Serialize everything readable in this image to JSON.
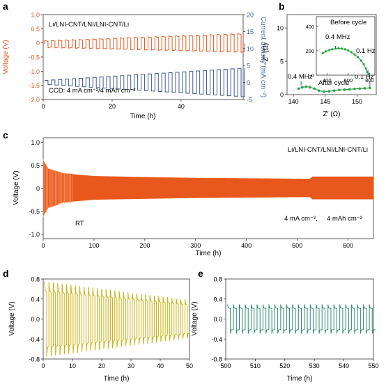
{
  "colors": {
    "orange": "#e8581c",
    "navy": "#3d5a92",
    "green": "#2aa244",
    "yellow": "#c9b20c",
    "teal": "#2e8b6a",
    "axis": "#333333",
    "blue_label": "#4a6fa5"
  },
  "chart_data": [
    {
      "panel": "a",
      "type": "line",
      "annotations": [
        "Li/LNI-CNT/LNI/LNI-CNT/Li",
        "CCD: 4 mA cm⁻²/4 mAh cm⁻²"
      ],
      "xlabel": "Time (h)",
      "ylabel": "Voltage (V)",
      "y2label": "Current density (mA cm⁻²)",
      "xlim": [
        0,
        58
      ],
      "ylim": [
        -2.0,
        1.0
      ],
      "y2lim": [
        -5,
        20
      ],
      "xticks": [
        0,
        20,
        40
      ],
      "yticks": [
        "-2.0",
        "-1.5",
        "-1.0",
        "-0.5",
        "0",
        "0.5",
        "1.0"
      ],
      "y2ticks": [
        "-5",
        "0",
        "5",
        "10",
        "15",
        "20"
      ],
      "series": [
        {
          "axis": "left",
          "start": [
            0,
            -0.05
          ],
          "end": [
            58,
            0.35
          ],
          "note": "square-wave voltage, amplitude growing with time"
        },
        {
          "axis": "right",
          "start": [
            0,
            0.6
          ],
          "end": [
            58,
            4.0
          ],
          "note": "square-wave current density steps"
        }
      ]
    },
    {
      "panel": "b",
      "type": "scatter",
      "xlabel": "Z′ (Ω)",
      "ylabel": "−Z″ (Ω)",
      "xlim": [
        139,
        153
      ],
      "ylim": [
        0,
        12
      ],
      "xticks": [
        "140",
        "145",
        "150"
      ],
      "yticks": [
        "0",
        "5",
        "10"
      ],
      "annotations": [
        "0.4 MHz",
        "After cycle",
        "0.1 Hz"
      ],
      "points": [
        [
          140.8,
          0.9
        ],
        [
          141.4,
          1.1
        ],
        [
          142.0,
          1.2
        ],
        [
          142.6,
          1.1
        ],
        [
          143.3,
          0.9
        ],
        [
          144.0,
          0.6
        ],
        [
          144.8,
          0.45
        ],
        [
          145.6,
          0.5
        ],
        [
          146.4,
          0.6
        ],
        [
          147.2,
          0.7
        ],
        [
          148.0,
          0.75
        ],
        [
          148.8,
          0.8
        ],
        [
          149.6,
          0.85
        ],
        [
          150.4,
          0.9
        ],
        [
          151.2,
          0.95
        ],
        [
          152.0,
          1.0
        ]
      ],
      "inset": {
        "title": "Before cycle",
        "xlim": [
          300,
          850
        ],
        "ylim": [
          0,
          480
        ],
        "xticks": [
          "400",
          "600",
          "800"
        ],
        "yticks": [
          "0",
          "200",
          "400"
        ],
        "annotations": [
          "0.4 MHz",
          "0.1 Hz"
        ],
        "points": [
          [
            360,
            180
          ],
          [
            390,
            195
          ],
          [
            420,
            205
          ],
          [
            450,
            212
          ],
          [
            480,
            218
          ],
          [
            510,
            220
          ],
          [
            540,
            218
          ],
          [
            570,
            212
          ],
          [
            600,
            202
          ],
          [
            630,
            188
          ],
          [
            660,
            170
          ],
          [
            690,
            148
          ],
          [
            720,
            120
          ],
          [
            745,
            90
          ],
          [
            765,
            55
          ],
          [
            780,
            25
          ],
          [
            790,
            8
          ]
        ]
      }
    },
    {
      "panel": "c",
      "type": "line",
      "annotations": [
        "Li/LNI-CNT/LNI/LNI-CNT/Li",
        "RT",
        "4 mA cm⁻²,",
        "4 mAh cm⁻²"
      ],
      "xlabel": "Time (h)",
      "ylabel": "Voltage (V)",
      "xlim": [
        0,
        650
      ],
      "ylim": [
        -1.1,
        1.1
      ],
      "xticks": [
        "0",
        "100",
        "200",
        "300",
        "400",
        "500",
        "600"
      ],
      "yticks": [
        "-1.0",
        "-0.5",
        "0",
        "0.5",
        "1.0"
      ],
      "envelope": [
        [
          0,
          0.6
        ],
        [
          10,
          0.42
        ],
        [
          40,
          0.32
        ],
        [
          100,
          0.26
        ],
        [
          300,
          0.22
        ],
        [
          525,
          0.2
        ],
        [
          530,
          0.25
        ],
        [
          650,
          0.25
        ]
      ]
    },
    {
      "panel": "d",
      "type": "line",
      "xlabel": "Time (h)",
      "ylabel": "Voltage (V)",
      "xlim": [
        0,
        50
      ],
      "ylim": [
        -0.8,
        0.8
      ],
      "xticks": [
        "0",
        "10",
        "20",
        "30",
        "40",
        "50"
      ],
      "yticks": [
        "-0.8",
        "-0.4",
        "0.0",
        "0.4",
        "0.8"
      ],
      "period": 1.5,
      "amp_start": 0.7,
      "amp_end": 0.35
    },
    {
      "panel": "e",
      "type": "line",
      "xlabel": "Time (h)",
      "ylabel": "Voltage (V)",
      "xlim": [
        500,
        550
      ],
      "ylim": [
        -0.8,
        0.8
      ],
      "xticks": [
        "500",
        "510",
        "520",
        "530",
        "540",
        "550"
      ],
      "yticks": [
        "-0.8",
        "-0.4",
        "0.0",
        "0.4",
        "0.8"
      ],
      "period": 2.0,
      "amp_start": 0.27,
      "amp_end": 0.27
    }
  ],
  "labels": {
    "a": "a",
    "b": "b",
    "c": "c",
    "d": "d",
    "e": "e"
  }
}
